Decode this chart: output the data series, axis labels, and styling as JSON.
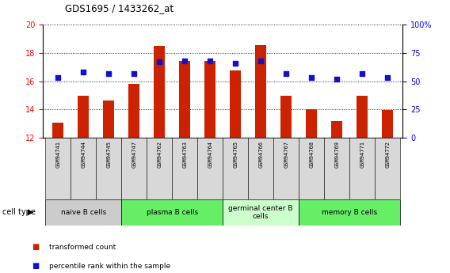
{
  "title": "GDS1695 / 1433262_at",
  "samples": [
    "GSM94741",
    "GSM94744",
    "GSM94745",
    "GSM94747",
    "GSM94762",
    "GSM94763",
    "GSM94764",
    "GSM94765",
    "GSM94766",
    "GSM94767",
    "GSM94768",
    "GSM94769",
    "GSM94771",
    "GSM94772"
  ],
  "transformed_counts": [
    13.1,
    15.0,
    14.65,
    15.8,
    18.5,
    17.45,
    17.45,
    16.75,
    18.55,
    14.95,
    14.05,
    13.2,
    15.0,
    13.95
  ],
  "percentile_ranks": [
    53,
    58,
    57,
    57,
    67,
    68,
    68,
    66,
    68,
    57,
    53,
    52,
    57,
    53
  ],
  "ylim_left": [
    12,
    20
  ],
  "ylim_right": [
    0,
    100
  ],
  "yticks_left": [
    12,
    14,
    16,
    18,
    20
  ],
  "yticks_right": [
    0,
    25,
    50,
    75,
    100
  ],
  "bar_color": "#cc2200",
  "dot_color": "#1111cc",
  "cell_types": [
    {
      "label": "naive B cells",
      "start": 0,
      "end": 3,
      "color": "#cccccc"
    },
    {
      "label": "plasma B cells",
      "start": 3,
      "end": 7,
      "color": "#66ee66"
    },
    {
      "label": "germinal center B\ncells",
      "start": 7,
      "end": 10,
      "color": "#ccffcc"
    },
    {
      "label": "memory B cells",
      "start": 10,
      "end": 14,
      "color": "#66ee66"
    }
  ],
  "legend_items": [
    {
      "label": "transformed count",
      "color": "#cc2200"
    },
    {
      "label": "percentile rank within the sample",
      "color": "#1111cc"
    }
  ],
  "cell_type_label": "cell type",
  "bar_width": 0.45
}
